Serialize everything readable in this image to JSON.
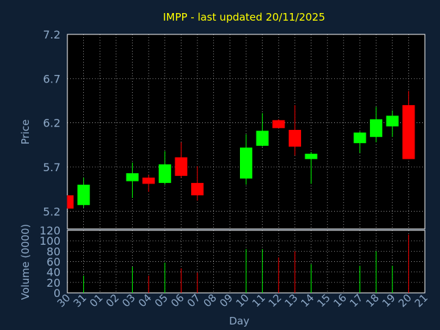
{
  "colors": {
    "background": "#0f1f33",
    "plot_background": "#000000",
    "title": "#ffff00",
    "axis_text": "#8ea9c8",
    "grid": "#ffffff",
    "up": "#00ff00",
    "down": "#ff0000"
  },
  "chart_data": [
    {
      "type": "candlestick",
      "title": "IMPP - last updated 20/11/2025",
      "xlabel": "",
      "ylabel": "Price",
      "ylim": [
        5.0,
        7.2
      ],
      "yticks": [
        "5.2",
        "5.7",
        "6.2",
        "6.7",
        "7.2"
      ],
      "grid": true,
      "categories": [
        "30",
        "31",
        "01",
        "02",
        "03",
        "04",
        "05",
        "06",
        "07",
        "08",
        "09",
        "10",
        "11",
        "12",
        "13",
        "14",
        "15",
        "16",
        "17",
        "18",
        "19",
        "20",
        "21"
      ],
      "candles": [
        {
          "day": "30",
          "open": 5.38,
          "high": 5.38,
          "low": 5.23,
          "close": 5.23
        },
        {
          "day": "31",
          "open": 5.27,
          "high": 5.58,
          "low": 5.24,
          "close": 5.5
        },
        {
          "day": "03",
          "open": 5.54,
          "high": 5.75,
          "low": 5.35,
          "close": 5.63
        },
        {
          "day": "04",
          "open": 5.58,
          "high": 5.61,
          "low": 5.42,
          "close": 5.51
        },
        {
          "day": "05",
          "open": 5.52,
          "high": 5.88,
          "low": 5.5,
          "close": 5.73
        },
        {
          "day": "06",
          "open": 5.81,
          "high": 5.98,
          "low": 5.58,
          "close": 5.6
        },
        {
          "day": "07",
          "open": 5.52,
          "high": 5.71,
          "low": 5.32,
          "close": 5.38
        },
        {
          "day": "10",
          "open": 5.57,
          "high": 6.07,
          "low": 5.5,
          "close": 5.92
        },
        {
          "day": "11",
          "open": 5.94,
          "high": 6.31,
          "low": 5.93,
          "close": 6.11
        },
        {
          "day": "12",
          "open": 6.23,
          "high": 6.24,
          "low": 6.14,
          "close": 6.14
        },
        {
          "day": "13",
          "open": 6.12,
          "high": 6.4,
          "low": 5.83,
          "close": 5.93
        },
        {
          "day": "14",
          "open": 5.79,
          "high": 5.87,
          "low": 5.51,
          "close": 5.85
        },
        {
          "day": "17",
          "open": 5.97,
          "high": 6.1,
          "low": 5.86,
          "close": 6.09
        },
        {
          "day": "18",
          "open": 6.04,
          "high": 6.38,
          "low": 5.98,
          "close": 6.24
        },
        {
          "day": "19",
          "open": 6.16,
          "high": 6.34,
          "low": 6.04,
          "close": 6.28
        },
        {
          "day": "20",
          "open": 6.4,
          "high": 6.56,
          "low": 5.79,
          "close": 5.79
        }
      ]
    },
    {
      "type": "bar",
      "title": "",
      "xlabel": "Day",
      "ylabel": "Volume (0000)",
      "ylim": [
        0,
        120
      ],
      "yticks": [
        "0",
        "20",
        "40",
        "60",
        "80",
        "100",
        "120"
      ],
      "grid": true,
      "categories": [
        "30",
        "31",
        "01",
        "02",
        "03",
        "04",
        "05",
        "06",
        "07",
        "08",
        "09",
        "10",
        "11",
        "12",
        "13",
        "14",
        "15",
        "16",
        "17",
        "18",
        "19",
        "20",
        "21"
      ],
      "series": [
        {
          "values": [
            {
              "day": "30",
              "value": 0,
              "dir": "down"
            },
            {
              "day": "31",
              "value": 33,
              "dir": "up"
            },
            {
              "day": "03",
              "value": 50,
              "dir": "up"
            },
            {
              "day": "04",
              "value": 33,
              "dir": "down"
            },
            {
              "day": "05",
              "value": 58,
              "dir": "up"
            },
            {
              "day": "06",
              "value": 47,
              "dir": "down"
            },
            {
              "day": "07",
              "value": 39,
              "dir": "down"
            },
            {
              "day": "10",
              "value": 84,
              "dir": "up"
            },
            {
              "day": "11",
              "value": 84,
              "dir": "up"
            },
            {
              "day": "12",
              "value": 68,
              "dir": "down"
            },
            {
              "day": "13",
              "value": 80,
              "dir": "down"
            },
            {
              "day": "14",
              "value": 55,
              "dir": "up"
            },
            {
              "day": "17",
              "value": 52,
              "dir": "up"
            },
            {
              "day": "18",
              "value": 80,
              "dir": "up"
            },
            {
              "day": "19",
              "value": 52,
              "dir": "up"
            },
            {
              "day": "20",
              "value": 112,
              "dir": "down"
            }
          ]
        }
      ]
    }
  ]
}
